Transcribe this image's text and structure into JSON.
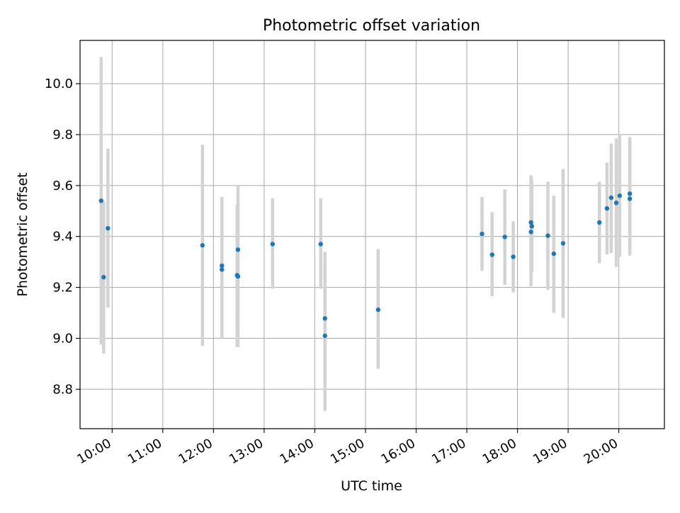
{
  "chart_data": {
    "type": "scatter",
    "title": "Photometric offset variation",
    "xlabel": "UTC time",
    "ylabel": "Photometric offset",
    "x_is_time": true,
    "xlim": [
      "09:22",
      "20:54"
    ],
    "ylim": [
      8.645,
      10.17
    ],
    "xticks": [
      "10:00",
      "11:00",
      "12:00",
      "13:00",
      "14:00",
      "15:00",
      "16:00",
      "17:00",
      "18:00",
      "19:00",
      "20:00"
    ],
    "yticks": [
      8.8,
      9.0,
      9.2,
      9.4,
      9.6,
      9.8,
      10.0
    ],
    "grid": true,
    "legend": "none",
    "colors": {
      "point": "#1f77b4",
      "errorbar": "#d3d3d3",
      "grid": "#b0b0b0",
      "axes": "#000000"
    },
    "series": [
      {
        "points": [
          {
            "x": "09:47",
            "y": 9.54,
            "lo": 8.975,
            "hi": 10.105
          },
          {
            "x": "09:50",
            "y": 9.24,
            "lo": 8.94,
            "hi": 9.54
          },
          {
            "x": "09:55",
            "y": 9.432,
            "lo": 9.12,
            "hi": 9.745
          },
          {
            "x": "11:47",
            "y": 9.365,
            "lo": 8.97,
            "hi": 9.76
          },
          {
            "x": "12:10",
            "y": 9.285,
            "lo": 9.0,
            "hi": 9.555
          },
          {
            "x": "12:10",
            "y": 9.27,
            "lo": 9.0,
            "hi": 9.54
          },
          {
            "x": "12:28",
            "y": 9.248,
            "lo": 8.965,
            "hi": 9.525
          },
          {
            "x": "12:29",
            "y": 9.243,
            "lo": 8.965,
            "hi": 9.52
          },
          {
            "x": "12:29",
            "y": 9.348,
            "lo": 9.1,
            "hi": 9.6
          },
          {
            "x": "13:10",
            "y": 9.37,
            "lo": 9.195,
            "hi": 9.55
          },
          {
            "x": "14:07",
            "y": 9.37,
            "lo": 9.195,
            "hi": 9.55
          },
          {
            "x": "14:12",
            "y": 9.078,
            "lo": 8.82,
            "hi": 9.34
          },
          {
            "x": "14:12",
            "y": 9.01,
            "lo": 8.715,
            "hi": 9.3
          },
          {
            "x": "15:15",
            "y": 9.112,
            "lo": 8.88,
            "hi": 9.35
          },
          {
            "x": "17:18",
            "y": 9.41,
            "lo": 9.265,
            "hi": 9.555
          },
          {
            "x": "17:30",
            "y": 9.328,
            "lo": 9.165,
            "hi": 9.495
          },
          {
            "x": "17:45",
            "y": 9.398,
            "lo": 9.21,
            "hi": 9.585
          },
          {
            "x": "17:55",
            "y": 9.32,
            "lo": 9.18,
            "hi": 9.46
          },
          {
            "x": "18:16",
            "y": 9.455,
            "lo": 9.265,
            "hi": 9.64
          },
          {
            "x": "18:16",
            "y": 9.418,
            "lo": 9.205,
            "hi": 9.63
          },
          {
            "x": "18:17",
            "y": 9.44,
            "lo": 9.26,
            "hi": 9.62
          },
          {
            "x": "18:36",
            "y": 9.403,
            "lo": 9.19,
            "hi": 9.615
          },
          {
            "x": "18:43",
            "y": 9.332,
            "lo": 9.1,
            "hi": 9.56
          },
          {
            "x": "18:54",
            "y": 9.373,
            "lo": 9.08,
            "hi": 9.665
          },
          {
            "x": "19:37",
            "y": 9.455,
            "lo": 9.295,
            "hi": 9.615
          },
          {
            "x": "19:46",
            "y": 9.51,
            "lo": 9.33,
            "hi": 9.69
          },
          {
            "x": "19:51",
            "y": 9.552,
            "lo": 9.335,
            "hi": 9.765
          },
          {
            "x": "19:57",
            "y": 9.532,
            "lo": 9.28,
            "hi": 9.785
          },
          {
            "x": "20:01",
            "y": 9.56,
            "lo": 9.32,
            "hi": 9.8
          },
          {
            "x": "20:13",
            "y": 9.568,
            "lo": 9.345,
            "hi": 9.79
          },
          {
            "x": "20:13",
            "y": 9.548,
            "lo": 9.325,
            "hi": 9.775
          }
        ]
      }
    ]
  }
}
